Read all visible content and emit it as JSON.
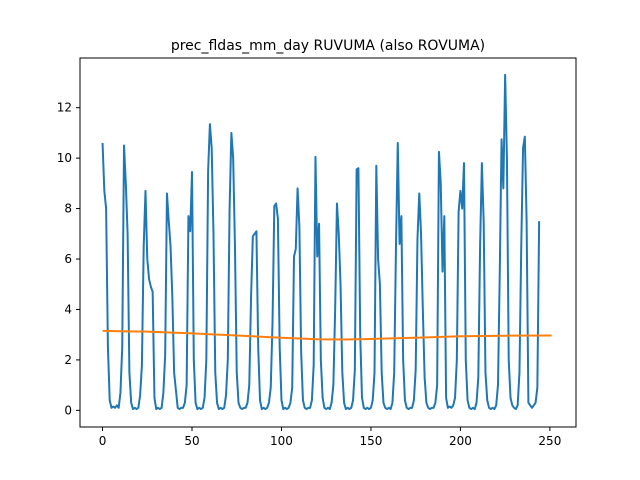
{
  "chart_data": {
    "type": "line",
    "title": "prec_fldas_mm_day RUVUMA (also ROVUMA)",
    "xlabel": "",
    "ylabel": "",
    "xlim": [
      -12.6,
      264.6
    ],
    "ylim": [
      -0.66,
      13.97
    ],
    "xticks": [
      0,
      50,
      100,
      150,
      200,
      250
    ],
    "yticks": [
      0,
      2,
      4,
      6,
      8,
      10,
      12
    ],
    "grid": false,
    "colors": [
      "#1f77b4",
      "#ff7f0e"
    ],
    "series": [
      {
        "values": [
          10.6,
          8.7,
          8.0,
          2.5,
          0.4,
          0.1,
          0.15,
          0.1,
          0.2,
          0.1,
          0.7,
          2.5,
          10.5,
          9.0,
          7.0,
          1.5,
          0.3,
          0.05,
          0.1,
          0.05,
          0.1,
          0.6,
          1.8,
          6.5,
          8.7,
          6.0,
          5.2,
          4.9,
          4.7,
          0.5,
          0.05,
          0.1,
          0.05,
          0.1,
          0.7,
          2.2,
          8.6,
          7.5,
          6.5,
          4.5,
          1.5,
          0.8,
          0.1,
          0.05,
          0.1,
          0.1,
          0.3,
          1.0,
          7.7,
          7.1,
          9.45,
          2.0,
          0.3,
          0.05,
          0.1,
          0.05,
          0.1,
          0.5,
          2.0,
          9.5,
          11.35,
          10.4,
          7.0,
          1.5,
          0.3,
          0.05,
          0.1,
          0.05,
          0.1,
          0.6,
          2.0,
          8.0,
          11.0,
          10.0,
          6.5,
          1.5,
          0.3,
          0.1,
          0.05,
          0.1,
          0.1,
          0.3,
          1.0,
          4.5,
          6.9,
          7.0,
          7.1,
          2.5,
          0.4,
          0.05,
          0.1,
          0.05,
          0.1,
          0.3,
          0.9,
          3.5,
          8.1,
          8.2,
          7.6,
          2.5,
          0.4,
          0.05,
          0.1,
          0.05,
          0.1,
          0.3,
          0.9,
          6.1,
          6.4,
          8.8,
          7.3,
          2.3,
          0.4,
          0.1,
          0.05,
          0.1,
          0.1,
          0.4,
          1.8,
          10.05,
          6.1,
          7.4,
          2.0,
          0.5,
          0.1,
          0.05,
          0.1,
          0.05,
          0.3,
          1.0,
          4.0,
          8.2,
          7.0,
          5.0,
          1.5,
          0.3,
          0.05,
          0.1,
          0.05,
          0.1,
          0.4,
          1.6,
          9.55,
          9.6,
          3.0,
          0.5,
          0.1,
          0.05,
          0.1,
          0.05,
          0.1,
          0.4,
          1.5,
          9.7,
          6.0,
          5.0,
          1.5,
          0.3,
          0.1,
          0.05,
          0.1,
          0.05,
          0.3,
          1.5,
          6.5,
          10.6,
          6.6,
          7.7,
          2.0,
          0.4,
          0.1,
          0.05,
          0.1,
          0.1,
          0.4,
          1.6,
          6.8,
          8.6,
          7.0,
          4.0,
          1.3,
          0.3,
          0.1,
          0.05,
          0.1,
          0.1,
          0.3,
          1.0,
          10.25,
          9.0,
          5.5,
          7.7,
          0.5,
          0.1,
          0.15,
          0.1,
          0.2,
          0.5,
          2.0,
          7.9,
          8.7,
          8.0,
          9.8,
          2.0,
          0.4,
          0.1,
          0.05,
          0.1,
          0.05,
          0.3,
          1.3,
          6.5,
          9.8,
          7.5,
          1.5,
          0.4,
          0.1,
          0.05,
          0.1,
          0.05,
          0.2,
          1.0,
          5.5,
          10.75,
          8.8,
          13.3,
          10.0,
          2.0,
          0.5,
          0.2,
          0.1,
          0.05,
          0.2,
          1.5,
          6.5,
          10.4,
          10.85,
          7.5,
          0.3,
          0.2,
          0.1,
          0.2,
          0.3,
          0.9,
          7.5
        ]
      },
      {
        "x": [
          0,
          25,
          50,
          75,
          100,
          120,
          135,
          150,
          175,
          200,
          225,
          251
        ],
        "values": [
          3.15,
          3.12,
          3.05,
          2.97,
          2.88,
          2.82,
          2.81,
          2.83,
          2.88,
          2.94,
          2.96,
          2.97
        ]
      }
    ]
  }
}
